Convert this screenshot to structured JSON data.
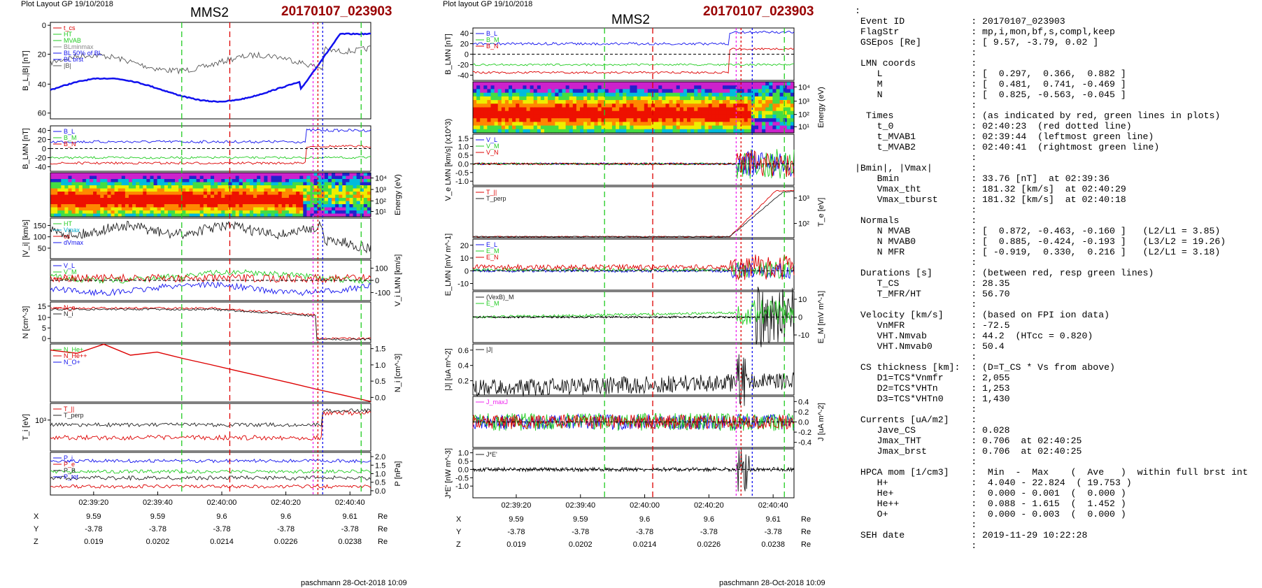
{
  "left_plot": {
    "layout_label": "Plot Layout GP 19/10/2018",
    "spacecraft": "MMS2",
    "event": "20170107_023903",
    "footer": "paschmann 28-Oct-2018 10:09",
    "panels": [
      {
        "ylabel": "B_L,|B| [nT]",
        "legend": [
          "t_cs",
          "HT",
          "MVAB",
          "BLminmax",
          "BL 50% of BL",
          "BL brst",
          "|B|"
        ]
      },
      {
        "ylabel": "B_LMN [nT]",
        "legend": [
          "B_L",
          "B_M",
          "B_N"
        ]
      },
      {
        "ylabel": "Energy (eV)"
      },
      {
        "ylabel": "|V_i| [km/s]",
        "legend": [
          "HT",
          "Vmax",
          "cs",
          "dVmax"
        ]
      },
      {
        "ylabel": "V_i LMN [km/s]",
        "legend": [
          "V_L",
          "V_M",
          "V_N"
        ]
      },
      {
        "ylabel": "N [cm^-3]",
        "legend": [
          "N_e",
          "N_i"
        ]
      },
      {
        "ylabel": "N_i [cm^-3]",
        "legend": [
          "N_He+",
          "N_He++",
          "N_O+"
        ]
      },
      {
        "ylabel": "T_i [eV]",
        "legend": [
          "T_||",
          "T_perp"
        ]
      },
      {
        "ylabel": "P [nPa]",
        "legend": [
          "P_i",
          "P_e",
          "P_B",
          "P_tot"
        ]
      }
    ],
    "time_ticks": [
      "02:39:20",
      "02:39:40",
      "02:40:00",
      "02:40:20",
      "02:40:40"
    ],
    "coord_rows": [
      {
        "label": "X",
        "values": [
          "9.59",
          "9.59",
          "9.6",
          "9.6",
          "9.61"
        ],
        "unit": "Re"
      },
      {
        "label": "Y",
        "values": [
          "-3.78",
          "-3.78",
          "-3.78",
          "-3.78",
          "-3.78"
        ],
        "unit": "Re"
      },
      {
        "label": "Z",
        "values": [
          "0.019",
          "0.0202",
          "0.0214",
          "0.0226",
          "0.0238"
        ],
        "unit": "Re"
      }
    ]
  },
  "mid_plot": {
    "layout_label": "Plot layout GP 19/10/2018",
    "spacecraft": "MMS2",
    "event": "20170107_023903",
    "footer": "paschmann 28-Oct-2018 10:09",
    "panels": [
      {
        "ylabel": "B_LMN [nT]",
        "legend": [
          "B_L",
          "B_M",
          "B_N"
        ]
      },
      {
        "ylabel": "Energy (eV)"
      },
      {
        "ylabel": "V_e LMN [km/s] (x10^3)",
        "legend": [
          "V_L",
          "V_M",
          "V_N"
        ]
      },
      {
        "ylabel": "T_e [eV]",
        "legend": [
          "T_||",
          "T_perp"
        ]
      },
      {
        "ylabel": "E_LMN [mV m^-1]",
        "legend": [
          "E_L",
          "E_M",
          "E_N"
        ]
      },
      {
        "ylabel": "E_M [mV m^-1]",
        "legend": [
          "(VexB)_M",
          "E_M"
        ]
      },
      {
        "ylabel": "|J| [uA m^-2]",
        "legend": [
          "|J|"
        ]
      },
      {
        "ylabel": "J [uA m^-2]",
        "legend": [
          "J_maxJ"
        ]
      },
      {
        "ylabel": "J*E' [nW m^-3]",
        "legend": [
          "J*E'"
        ]
      }
    ],
    "time_ticks": [
      "02:39:20",
      "02:39:40",
      "02:40:00",
      "02:40:20",
      "02:40:40"
    ],
    "coord_rows": [
      {
        "label": "X",
        "values": [
          "9.59",
          "9.59",
          "9.6",
          "9.6",
          "9.61"
        ],
        "unit": "Re"
      },
      {
        "label": "Y",
        "values": [
          "-3.78",
          "-3.78",
          "-3.78",
          "-3.78",
          "-3.78"
        ],
        "unit": "Re"
      },
      {
        "label": "Z",
        "values": [
          "0.019",
          "0.0202",
          "0.0214",
          "0.0226",
          "0.0238"
        ],
        "unit": "Re"
      }
    ]
  },
  "right_panel_text": ":\n Event ID            : 20170107_023903\n FlagStr             : mp,i,mon,bf,s,compl,keep\n GSEpos [Re]         : [ 9.57, -3.79, 0.02 ]\n                     :\n LMN coords          :\n    L                : [  0.297,  0.366,  0.882 ]\n    M                : [  0.481,  0.741, -0.469 ]\n    N                : [  0.825, -0.563, -0.045 ]\n                     :\n  Times              : (as indicated by red, green lines in plots)\n    t_0              : 02:40:23  (red dotted line)\n    t_MVAB1          : 02:39:44  (leftmost green line)\n    t_MVAB2          : 02:40:41  (rightmost green line)\n                     :\n|Bmin|, |Vmax|       :\n    Bmin             : 33.76 [nT]  at 02:39:36\n    Vmax_tht         : 181.32 [km/s]  at 02:40:29\n    Vmax_tburst      : 181.32 [km/s]  at 02:40:18\n                     :\n Normals             :\n    N MVAB           : [  0.872, -0.463, -0.160 ]   (L2/L1 = 3.85)\n    N MVAB0          : [  0.885, -0.424, -0.193 ]   (L3/L2 = 19.26)\n    N MFR            : [ -0.919,  0.330,  0.216 ]   (L2/L1 = 3.18)\n                     :\n Durations [s]       : (between red, resp green lines)\n    T_CS             : 28.35\n    T_MFR/HT         : 56.70\n                     :\n Velocity [km/s]     : (based on FPI ion data)\n    VnMFR            : -72.5\n    VHT.Nmvab        : 44.2  (HTcc = 0.820)\n    VHT.Nmvab0       : 50.4\n                     :\n CS thickness [km]:  : (D=T_CS * Vs from above)\n    D1=TCS*Vnmfr     : 2,055\n    D2=TCS*VHTn      : 1,253\n    D3=TCS*VHTn0     : 1,430\n                     :\n Currents [uA/m2]    :\n    Jave_CS          : 0.028\n    Jmax_THT         : 0.706  at 02:40:25\n    Jmax_brst        : 0.706  at 02:40:25\n                     :\n HPCA mom [1/cm3]    :  Min  -  Max    (  Ave   )  within full brst int\n    H+               :  4.040 - 22.824  ( 19.753 )\n    He+              :  0.000 - 0.001  (  0.000 )\n    He++             :  0.088 - 1.615  (  1.452 )\n    O+               :  0.000 - 0.003  (  0.000 )\n                     :\n SEH date            : 2019-11-29 10:22:28\n                     :",
  "chart_data": [
    {
      "type": "line",
      "title": "MMS2",
      "x_ticks": [
        "02:39:20",
        "02:39:40",
        "02:40:00",
        "02:40:20",
        "02:40:40"
      ],
      "panels": [
        {
          "ylabel": "B_L,|B| [nT]",
          "ylim": [
            -2,
            62
          ],
          "yticks": [
            0,
            20,
            40,
            60
          ]
        },
        {
          "ylabel": "B_LMN [nT]",
          "yticks": [
            -40,
            -20,
            0,
            20,
            40
          ]
        },
        {
          "ylabel": "Energy (eV)",
          "yticks": [
            "10^1",
            "10^2",
            "10^3",
            "10^4"
          ]
        },
        {
          "ylabel": "|V_i| [km/s]",
          "yticks": [
            50,
            100,
            150
          ]
        },
        {
          "ylabel": "V_i LMN [km/s]",
          "yticks": [
            -100,
            0,
            100
          ]
        },
        {
          "ylabel": "N [cm^-3]",
          "yticks": [
            0,
            5,
            10,
            15
          ]
        },
        {
          "ylabel": "N_i [cm^-3]",
          "yticks": [
            0.0,
            0.5,
            1.0,
            1.5
          ]
        },
        {
          "ylabel": "T_i [eV]",
          "yticks": [
            "10^3"
          ]
        },
        {
          "ylabel": "P [nPa]",
          "yticks": [
            0.0,
            0.5,
            1.0,
            1.5,
            2.0
          ]
        }
      ]
    },
    {
      "type": "line",
      "title": "MMS2",
      "x_ticks": [
        "02:39:20",
        "02:39:40",
        "02:40:00",
        "02:40:20",
        "02:40:40"
      ],
      "panels": [
        {
          "ylabel": "B_LMN [nT]",
          "yticks": [
            -40,
            -20,
            0,
            20,
            40
          ]
        },
        {
          "ylabel": "Energy (eV)",
          "yticks": [
            "10^1",
            "10^2",
            "10^3",
            "10^4"
          ]
        },
        {
          "ylabel": "V_e LMN [km/s] (x10^3)",
          "yticks": [
            -1.0,
            -0.5,
            0.0,
            0.5,
            1.0,
            1.5
          ]
        },
        {
          "ylabel": "T_e [eV]",
          "yticks": [
            "10^2",
            "10^3"
          ]
        },
        {
          "ylabel": "E_LMN [mV m^-1]",
          "yticks": [
            -10,
            0,
            10,
            20
          ]
        },
        {
          "ylabel": "E_M [mV m^-1]",
          "yticks": [
            -10,
            0,
            10
          ]
        },
        {
          "ylabel": "|J| [uA m^-2]",
          "yticks": [
            0.2,
            0.4,
            0.6
          ]
        },
        {
          "ylabel": "J [uA m^-2]",
          "yticks": [
            -0.4,
            -0.2,
            0.0,
            0.2,
            0.4
          ]
        },
        {
          "ylabel": "J*E' [nW m^-3]",
          "yticks": [
            -1.0,
            -0.5,
            0.0,
            0.5,
            1.0
          ]
        }
      ]
    }
  ],
  "colors": {
    "red": "#dd0000",
    "green": "#22cc22",
    "blue": "#1111ee",
    "magenta": "#ee22ee",
    "dark_red": "#990000"
  }
}
